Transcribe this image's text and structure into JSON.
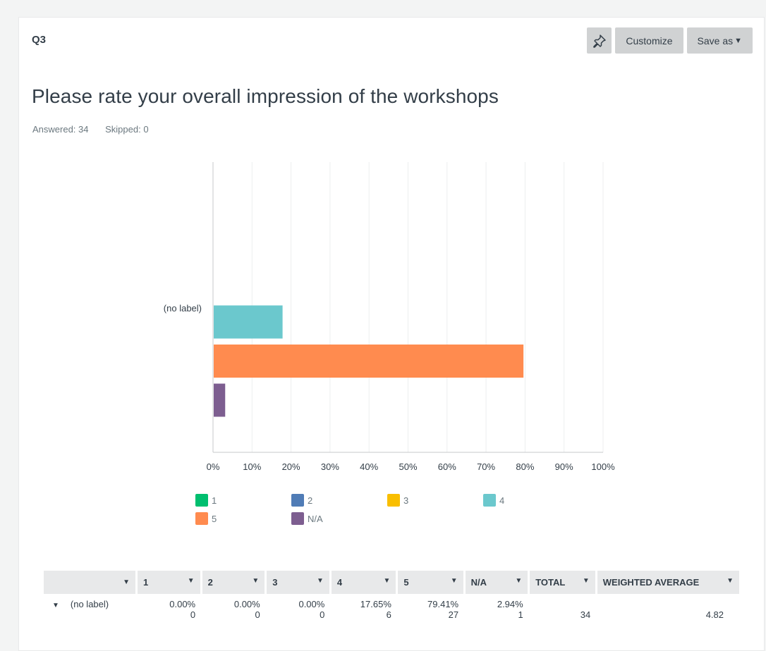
{
  "header": {
    "question_id": "Q3",
    "customize_label": "Customize",
    "save_as_label": "Save as",
    "pin_icon": "pin-icon"
  },
  "question": {
    "title": "Please rate your overall impression of the workshops",
    "answered": "Answered: 34",
    "skipped": "Skipped: 0"
  },
  "chart_data": {
    "type": "bar",
    "orientation": "horizontal",
    "categories": [
      "(no label)"
    ],
    "series": [
      {
        "name": "1",
        "values": [
          0.0
        ],
        "color": "#00bf6f"
      },
      {
        "name": "2",
        "values": [
          0.0
        ],
        "color": "#507cb6"
      },
      {
        "name": "3",
        "values": [
          0.0
        ],
        "color": "#f9be00"
      },
      {
        "name": "4",
        "values": [
          17.65
        ],
        "color": "#6bc8cd"
      },
      {
        "name": "5",
        "values": [
          79.41
        ],
        "color": "#ff8b4f"
      },
      {
        "name": "N/A",
        "values": [
          2.94
        ],
        "color": "#7d5e90"
      }
    ],
    "xticks": [
      "0%",
      "10%",
      "20%",
      "30%",
      "40%",
      "50%",
      "60%",
      "70%",
      "80%",
      "90%",
      "100%"
    ],
    "xlim": [
      0,
      100
    ],
    "grid": true,
    "legend_position": "bottom"
  },
  "table": {
    "headers": [
      "",
      "1",
      "2",
      "3",
      "4",
      "5",
      "N/A",
      "TOTAL",
      "WEIGHTED AVERAGE"
    ],
    "rows": [
      {
        "label": "(no label)",
        "cells": [
          {
            "pct": "0.00%",
            "count": "0"
          },
          {
            "pct": "0.00%",
            "count": "0"
          },
          {
            "pct": "0.00%",
            "count": "0"
          },
          {
            "pct": "17.65%",
            "count": "6"
          },
          {
            "pct": "79.41%",
            "count": "27"
          },
          {
            "pct": "2.94%",
            "count": "1"
          }
        ],
        "total": "34",
        "weighted_average": "4.82"
      }
    ]
  }
}
